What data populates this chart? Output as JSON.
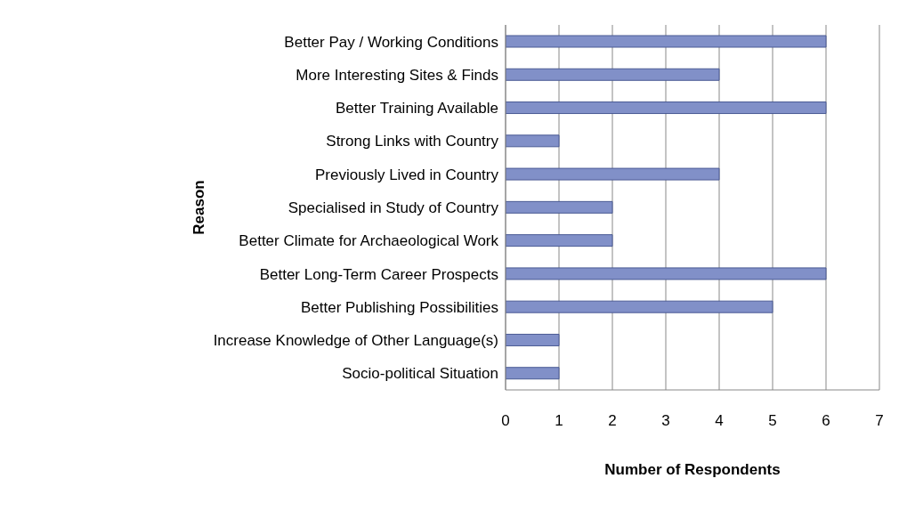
{
  "chart_data": {
    "type": "bar",
    "orientation": "horizontal",
    "xlabel": "Number of Respondents",
    "ylabel": "Reason",
    "categories": [
      "Better Pay / Working Conditions",
      "More Interesting Sites & Finds",
      "Better Training Available",
      "Strong Links with Country",
      "Previously Lived in Country",
      "Specialised in Study of Country",
      "Better Climate for Archaeological Work",
      "Better Long-Term Career Prospects",
      "Better Publishing Possibilities",
      "Increase Knowledge of Other Language(s)",
      "Socio-political Situation"
    ],
    "values": [
      6,
      4,
      6,
      1,
      4,
      2,
      2,
      6,
      5,
      1,
      1
    ],
    "color": "#8190c8",
    "xlim": [
      0,
      7
    ],
    "xticks": [
      0,
      1,
      2,
      3,
      4,
      5,
      6,
      7
    ],
    "grid": "x"
  }
}
